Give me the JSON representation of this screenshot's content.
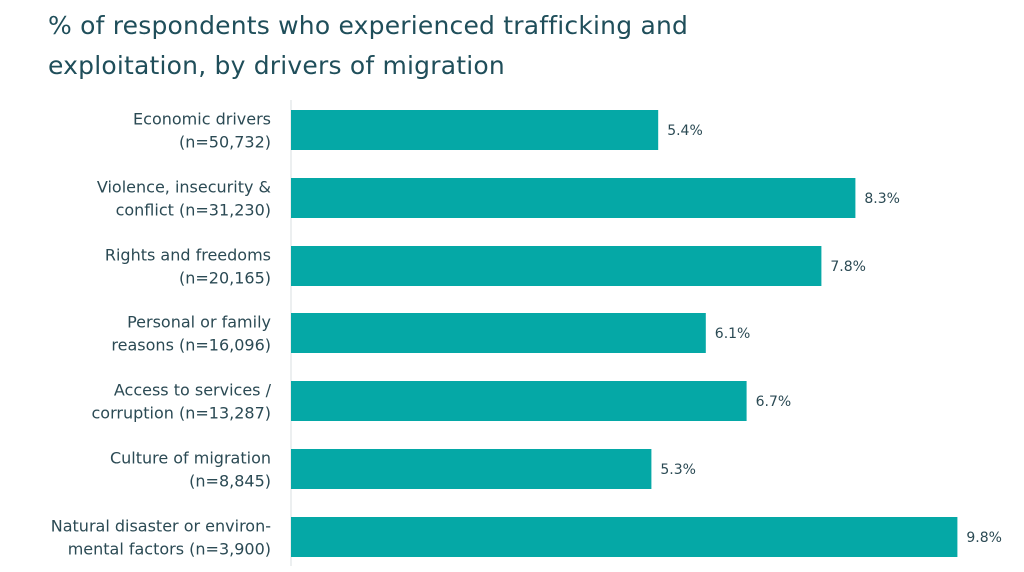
{
  "title_lines": [
    "% of respondents who experienced trafficking and",
    "exploitation, by drivers of migration"
  ],
  "colors": {
    "bar": "#05a8a6",
    "title": "#1f4e5a",
    "label": "#2b4a54",
    "value": "#2b4a54"
  },
  "chart_data": {
    "type": "bar",
    "orientation": "horizontal",
    "title": "% of respondents who experienced trafficking and exploitation, by drivers of migration",
    "xlabel": "",
    "ylabel": "",
    "grid": false,
    "legend": "none",
    "categories": [
      [
        "Economic drivers",
        "(n=50,732)"
      ],
      [
        "Violence, insecurity &",
        "conflict (n=31,230)"
      ],
      [
        "Rights and freedoms",
        "(n=20,165)"
      ],
      [
        "Personal or family",
        "reasons (n=16,096)"
      ],
      [
        "Access to  services /",
        "corruption (n=13,287)"
      ],
      [
        "Culture of migration",
        "(n=8,845)"
      ],
      [
        "Natural disaster or environ-",
        "mental factors (n=3,900)"
      ]
    ],
    "values": [
      5.4,
      8.3,
      7.8,
      6.1,
      6.7,
      5.3,
      9.8
    ],
    "value_labels": [
      "5.4%",
      "8.3%",
      "7.8%",
      "6.1%",
      "6.7%",
      "5.3%",
      "9.8%"
    ],
    "value_unit": "%"
  }
}
